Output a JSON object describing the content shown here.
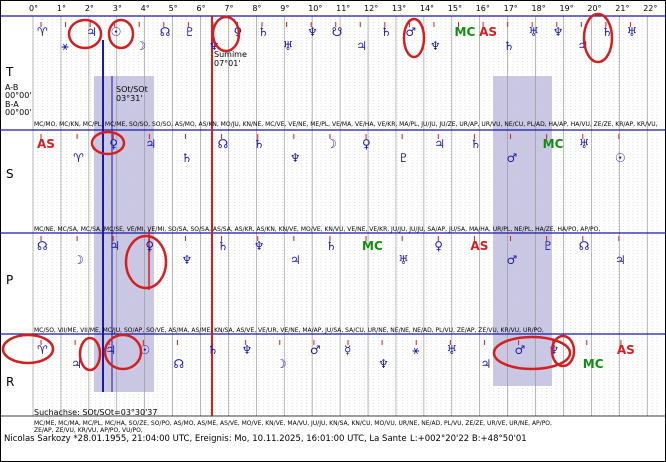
{
  "degrees": [
    "0°",
    "1°",
    "2°",
    "3°",
    "4°",
    "5°",
    "6°",
    "7°",
    "8°",
    "9°",
    "10°",
    "11°",
    "12°",
    "13°",
    "14°",
    "15°",
    "16°",
    "17°",
    "18°",
    "19°",
    "20°",
    "21°",
    "22°"
  ],
  "band_labels": [
    "T",
    "S",
    "P",
    "R"
  ],
  "transit_label": {
    "line1": "Sumime",
    "line2": "07°01'"
  },
  "ab": {
    "a": "A-B",
    "a_val": "00°00'",
    "b": "B-A",
    "b_val": "00°00'"
  },
  "sot": {
    "line1": "SOt/SOt",
    "line2": "03°31'"
  },
  "search_axis": "Suchachse: SOt/SOt=03°30'37",
  "footer": {
    "person": "Nicolas Sarkozy  *28.01.1955, 21:04:00 UTC, Ereignis: Mo, 10.11.2025, 16:01:00 UTC, La Sante",
    "coords": "L:+002°20'22  B:+48°50'01"
  },
  "pair_rows": [
    "MC/MO, MC/KN, MC/PL, MC/ME, SO/SO, SO/SO, AS/MO, AS/KN, MO/JU, KN/NE, MC/VE, VE/NE, ME/PL, VE/MA, VE/HA, VE/KR, MA/PL, JU/JU, JU/ZE, UR/AP, UR/VU, NE/CU, PL/AD, HA/AP, HA/VU, ZE/ZE, KR/AP, KR/VU,",
    "MC/NE, MC/SA, MC/SA, MC/SE, VE/MI, VE/MI, SO/SA, SO/SA, AS/SA, AS/KR, AS/KN, KN/VE, MO/VE, KN/VU, VE/NE, VE/KR, JU/JU, JU/JU, SA/AP, JU/SA, MA/HA, UR/PL, NE/PL, HA/ZE, HA/PO, AP/PO,",
    "MC/SO, VII/ME, VII/ME, MC/JU, SO/AP, SO/VE, AS/MA, AS/ME, KN/SA, AS/VE, VE/UR, VE/NE, MA/AP, JU/SA, SA/CU, UR/NE, NE/NE, NE/AD, PL/VU, ZE/AP, ZE/VU, KR/VU, UR/PO,",
    "MC/ME, MC/MA, MC/PL, MC/HA, SO/ZE, SO/PO, AS/MO, AS/ME, AS/VE, MO/VE, KN/VE, MA/VU, JU/JU, KN/SA, KN/CU, MO/VU, UR/NE, NE/AD, PL/VU, ZE/ZE, UR/VE, UR/NE, AP/PO,",
    "ZE/AP, ZE/VU, KR/VU, AP/PO, VU/PO,"
  ],
  "glyphs": {
    "T": [
      "♈",
      "⚹",
      "♃",
      "☉",
      "☽",
      "☊",
      "♇",
      "♆",
      "♀",
      "♄",
      "♅",
      "♆",
      "☋",
      "♃",
      "♄",
      "♂",
      "♆",
      "MC",
      "AS",
      "♄",
      "♅",
      "♆",
      "♃",
      "♄",
      "♅"
    ],
    "S": [
      "AS",
      "♈",
      "♀",
      "♃",
      "♄",
      "☊",
      "♄",
      "♆",
      "☽",
      "♀",
      "♇",
      "♃",
      "♄",
      "♂",
      "MC",
      "♅",
      "☉"
    ],
    "P": [
      "☊",
      "☽",
      "♃",
      "♀",
      "♆",
      "♄",
      "♆",
      "♃",
      "♄",
      "MC",
      "♅",
      "♀",
      "AS",
      "♂",
      "♇",
      "☊",
      "♃"
    ],
    "R": [
      "♈",
      "♃",
      "♃",
      "☉",
      "☊",
      "♄",
      "♆",
      "☽",
      "♂",
      "☿",
      "♆",
      "⚹",
      "♅",
      "♃",
      "♂",
      "♆",
      "MC",
      "AS"
    ]
  },
  "colors": {
    "grid": "#cfcfcf",
    "blue": "#1a1aa6",
    "red": "#d22020",
    "green": "#109010",
    "shade": "#b8b4dc"
  }
}
